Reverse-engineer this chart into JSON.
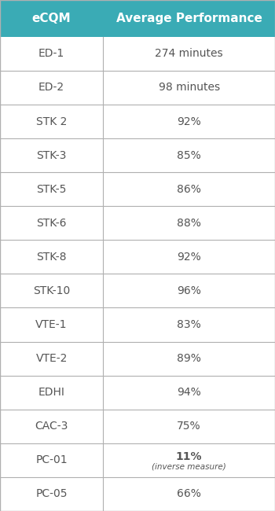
{
  "header": [
    "eCQM",
    "Average Performance"
  ],
  "rows": [
    [
      "ED-1",
      "274 minutes"
    ],
    [
      "ED-2",
      "98 minutes"
    ],
    [
      "STK 2",
      "92%"
    ],
    [
      "STK-3",
      "85%"
    ],
    [
      "STK-5",
      "86%"
    ],
    [
      "STK-6",
      "88%"
    ],
    [
      "STK-8",
      "92%"
    ],
    [
      "STK-10",
      "96%"
    ],
    [
      "VTE-1",
      "83%"
    ],
    [
      "VTE-2",
      "89%"
    ],
    [
      "EDHI",
      "94%"
    ],
    [
      "CAC-3",
      "75%"
    ],
    [
      "PC-01",
      "11%|(inverse measure)"
    ],
    [
      "PC-05",
      "66%"
    ]
  ],
  "header_bg_color": "#3AABB5",
  "header_text_color": "#ffffff",
  "row_text_color": "#555555",
  "grid_color": "#b0b0b0",
  "bg_color": "#ffffff",
  "col_split": 0.375,
  "header_fontsize": 11,
  "cell_fontsize": 10,
  "note_fontsize": 7.5
}
